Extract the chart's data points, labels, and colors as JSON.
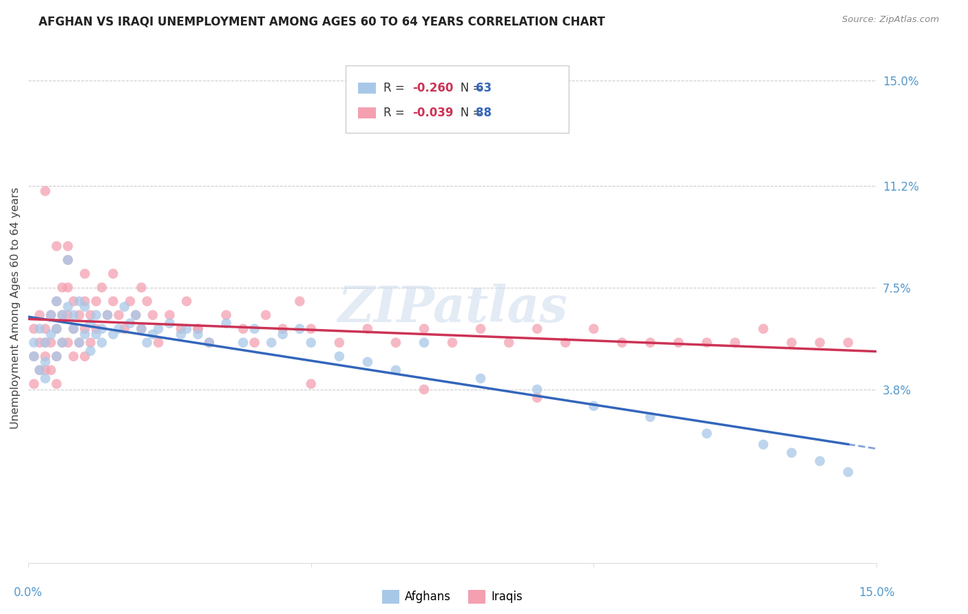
{
  "title": "AFGHAN VS IRAQI UNEMPLOYMENT AMONG AGES 60 TO 64 YEARS CORRELATION CHART",
  "source": "Source: ZipAtlas.com",
  "ylabel": "Unemployment Among Ages 60 to 64 years",
  "ylabel_ticks_right_vals": [
    0.15,
    0.112,
    0.075,
    0.038
  ],
  "ylabel_ticks_right_labels": [
    "15.0%",
    "11.2%",
    "7.5%",
    "3.8%"
  ],
  "xlim": [
    0.0,
    0.15
  ],
  "ylim": [
    -0.025,
    0.16
  ],
  "grid_color": "#cccccc",
  "background_color": "#ffffff",
  "afghan_color": "#a8c8e8",
  "iraqi_color": "#f4a0b0",
  "afghan_line_color": "#3366bb",
  "iraqi_line_color": "#cc3355",
  "legend_afghan_r": "-0.260",
  "legend_afghan_n": "63",
  "legend_iraqi_r": "-0.039",
  "legend_iraqi_n": "88",
  "tick_color": "#5599cc",
  "watermark_color": "#c8d8ec",
  "afghan_x": [
    0.001,
    0.001,
    0.002,
    0.002,
    0.003,
    0.003,
    0.003,
    0.004,
    0.004,
    0.005,
    0.005,
    0.005,
    0.006,
    0.006,
    0.007,
    0.007,
    0.008,
    0.008,
    0.009,
    0.009,
    0.01,
    0.01,
    0.011,
    0.011,
    0.012,
    0.012,
    0.013,
    0.013,
    0.014,
    0.015,
    0.016,
    0.017,
    0.018,
    0.019,
    0.02,
    0.021,
    0.022,
    0.023,
    0.025,
    0.027,
    0.028,
    0.03,
    0.032,
    0.035,
    0.038,
    0.04,
    0.043,
    0.045,
    0.048,
    0.05,
    0.055,
    0.06,
    0.065,
    0.07,
    0.08,
    0.09,
    0.1,
    0.11,
    0.12,
    0.13,
    0.135,
    0.14,
    0.145
  ],
  "afghan_y": [
    0.055,
    0.05,
    0.06,
    0.045,
    0.055,
    0.048,
    0.042,
    0.065,
    0.058,
    0.07,
    0.06,
    0.05,
    0.065,
    0.055,
    0.085,
    0.068,
    0.06,
    0.065,
    0.07,
    0.055,
    0.068,
    0.058,
    0.062,
    0.052,
    0.065,
    0.058,
    0.06,
    0.055,
    0.065,
    0.058,
    0.06,
    0.068,
    0.062,
    0.065,
    0.06,
    0.055,
    0.058,
    0.06,
    0.062,
    0.058,
    0.06,
    0.058,
    0.055,
    0.062,
    0.055,
    0.06,
    0.055,
    0.058,
    0.06,
    0.055,
    0.05,
    0.048,
    0.045,
    0.055,
    0.042,
    0.038,
    0.032,
    0.028,
    0.022,
    0.018,
    0.015,
    0.012,
    0.008
  ],
  "iraqi_x": [
    0.001,
    0.001,
    0.001,
    0.002,
    0.002,
    0.002,
    0.003,
    0.003,
    0.003,
    0.003,
    0.004,
    0.004,
    0.004,
    0.005,
    0.005,
    0.005,
    0.005,
    0.006,
    0.006,
    0.006,
    0.007,
    0.007,
    0.007,
    0.007,
    0.008,
    0.008,
    0.008,
    0.009,
    0.009,
    0.01,
    0.01,
    0.01,
    0.011,
    0.011,
    0.012,
    0.012,
    0.013,
    0.014,
    0.015,
    0.016,
    0.017,
    0.018,
    0.019,
    0.02,
    0.021,
    0.022,
    0.023,
    0.025,
    0.027,
    0.028,
    0.03,
    0.032,
    0.035,
    0.038,
    0.04,
    0.042,
    0.045,
    0.048,
    0.05,
    0.055,
    0.06,
    0.065,
    0.07,
    0.075,
    0.08,
    0.085,
    0.09,
    0.095,
    0.1,
    0.105,
    0.11,
    0.115,
    0.12,
    0.125,
    0.13,
    0.135,
    0.14,
    0.145,
    0.003,
    0.005,
    0.007,
    0.01,
    0.015,
    0.02,
    0.03,
    0.05,
    0.07,
    0.09
  ],
  "iraqi_y": [
    0.05,
    0.04,
    0.06,
    0.065,
    0.055,
    0.045,
    0.06,
    0.05,
    0.045,
    0.055,
    0.065,
    0.055,
    0.045,
    0.07,
    0.06,
    0.05,
    0.04,
    0.065,
    0.075,
    0.055,
    0.065,
    0.055,
    0.075,
    0.085,
    0.07,
    0.06,
    0.05,
    0.065,
    0.055,
    0.07,
    0.06,
    0.05,
    0.065,
    0.055,
    0.07,
    0.06,
    0.075,
    0.065,
    0.07,
    0.065,
    0.06,
    0.07,
    0.065,
    0.06,
    0.07,
    0.065,
    0.055,
    0.065,
    0.06,
    0.07,
    0.06,
    0.055,
    0.065,
    0.06,
    0.055,
    0.065,
    0.06,
    0.07,
    0.06,
    0.055,
    0.06,
    0.055,
    0.06,
    0.055,
    0.06,
    0.055,
    0.06,
    0.055,
    0.06,
    0.055,
    0.055,
    0.055,
    0.055,
    0.055,
    0.06,
    0.055,
    0.055,
    0.055,
    0.11,
    0.09,
    0.09,
    0.08,
    0.08,
    0.075,
    0.06,
    0.04,
    0.038,
    0.035
  ]
}
